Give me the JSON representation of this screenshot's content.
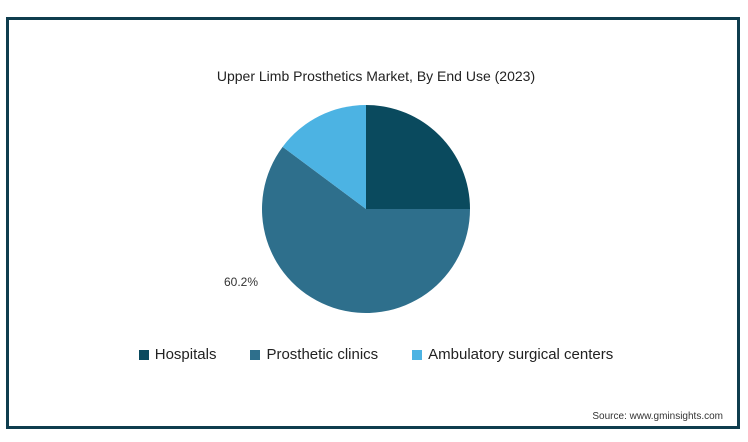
{
  "chart_data": {
    "type": "pie",
    "title": "Upper Limb Prosthetics Market, By End Use (2023)",
    "categories": [
      "Hospitals",
      "Prosthetic clinics",
      "Ambulatory surgical centers"
    ],
    "values": [
      25.0,
      60.2,
      14.8
    ],
    "colors": [
      "#0a4a5e",
      "#2e6f8c",
      "#4cb3e3"
    ],
    "data_labels": [
      "",
      "60.2%",
      ""
    ],
    "legend_position": "bottom"
  },
  "source": "Source: www.gminsights.com"
}
